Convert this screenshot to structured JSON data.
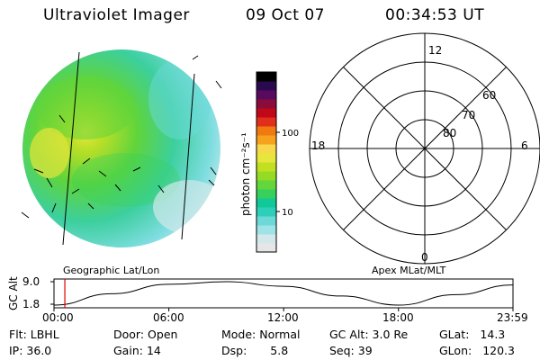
{
  "header": {
    "title": "Ultraviolet Imager",
    "date": "09 Oct 07",
    "time": "00:34:53 UT"
  },
  "colorbar": {
    "unit_label": "photon cm⁻²s⁻¹",
    "tick_labels": [
      "100",
      "10"
    ],
    "colors": [
      "#e6e6e6",
      "#d2e8ea",
      "#9fe3e6",
      "#6cd9d8",
      "#2ecfb9",
      "#10c898",
      "#37d05c",
      "#62d63a",
      "#95db26",
      "#c0e020",
      "#e6e63c",
      "#f6d84a",
      "#f7a21c",
      "#f07a10",
      "#e0301c",
      "#c00818",
      "#8a0c3a",
      "#5a0a5e",
      "#2a0a4e",
      "#000000"
    ]
  },
  "polar_plot": {
    "lat_labels": [
      "60",
      "70",
      "80"
    ],
    "mlt_labels": [
      "12",
      "18",
      "6",
      "0"
    ]
  },
  "map_labels": {
    "left": "Geographic Lat/Lon",
    "right": "Apex MLat/MLT"
  },
  "altitude_plot": {
    "ylabel": "GC Alt",
    "ytick_labels": [
      "9.0",
      "1.8"
    ],
    "xtick_labels": [
      "00:00",
      "06:00",
      "12:00",
      "18:00",
      "23:59"
    ]
  },
  "chart_data": {
    "type": "line",
    "ylabel": "GC Alt",
    "x": [
      "00:00",
      "03:00",
      "06:00",
      "09:00",
      "12:00",
      "15:00",
      "18:00",
      "21:00",
      "23:59"
    ],
    "values": [
      1.8,
      5.3,
      8.2,
      9.0,
      7.6,
      4.6,
      1.8,
      5.0,
      8.0
    ],
    "ylim": [
      1.8,
      9.0
    ],
    "xticks": [
      "00:00",
      "06:00",
      "12:00",
      "18:00",
      "23:59"
    ],
    "current_time_marker": "00:34"
  },
  "status": {
    "flt_label": "Flt:",
    "flt_value": "LBHL",
    "ip_label": "IP:",
    "ip_value": "36.0",
    "door_label": "Door:",
    "door_value": "Open",
    "gain_label": "Gain:",
    "gain_value": "14",
    "mode_label": "Mode:",
    "mode_value": "Normal",
    "dsp_label": "Dsp:",
    "dsp_value": "5.8",
    "gcalt_label": "GC Alt:",
    "gcalt_value": "3.0 Re",
    "seq_label": "Seq:",
    "seq_value": "39",
    "glat_label": "GLat:",
    "glat_value": "14.3",
    "glon_label": "GLon:",
    "glon_value": "120.3"
  }
}
